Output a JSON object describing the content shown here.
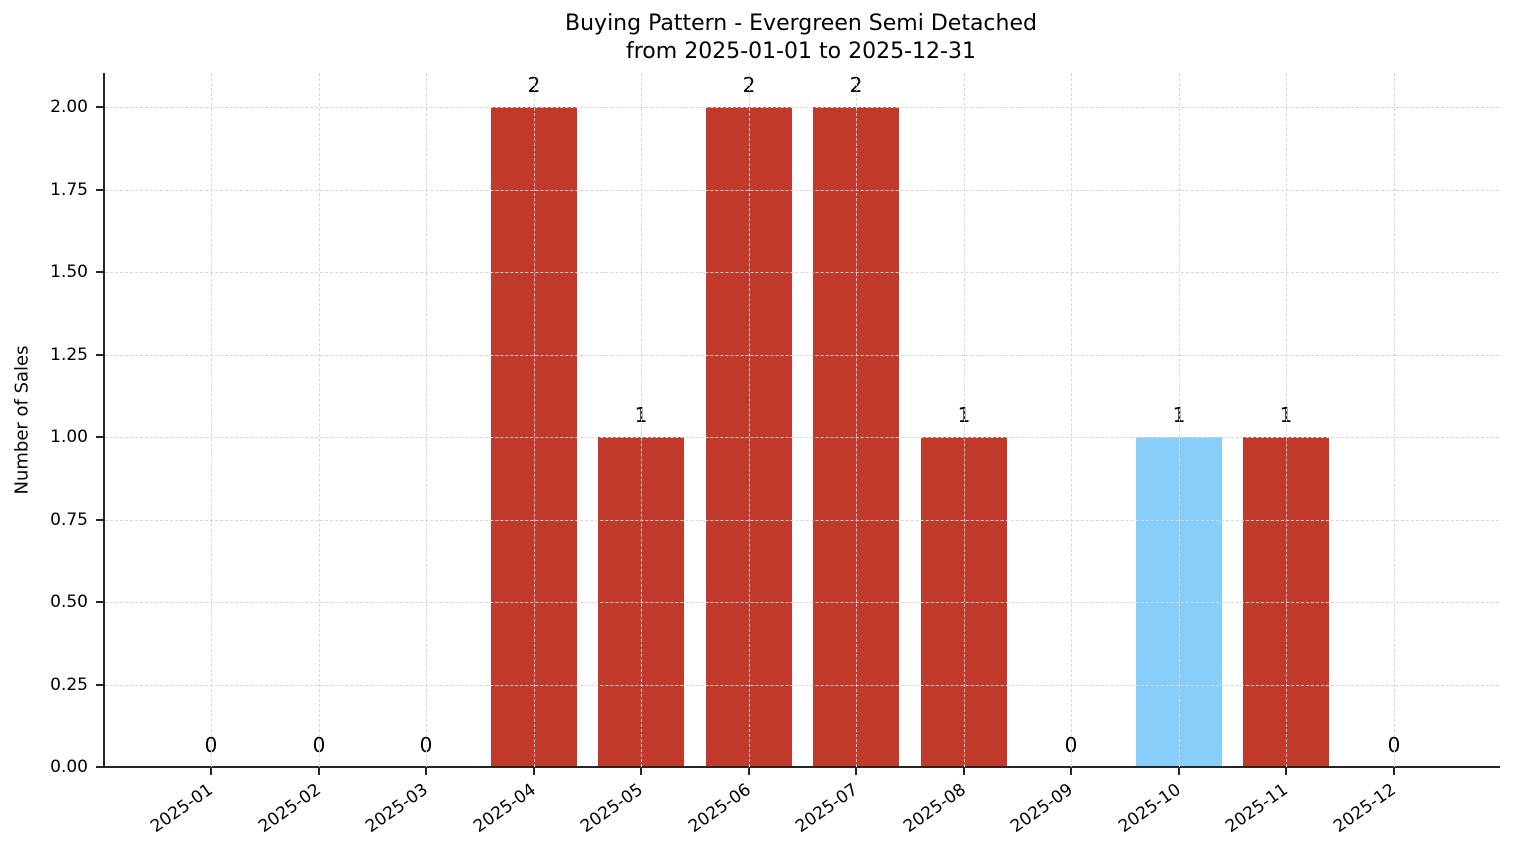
{
  "chart_data": {
    "type": "bar",
    "title": "Buying Pattern - Evergreen Semi Detached\nfrom 2025-01-01 to 2025-12-31",
    "title_lines": [
      "Buying Pattern - Evergreen Semi Detached",
      "from 2025-01-01 to 2025-12-31"
    ],
    "xlabel": "",
    "ylabel": "Number of Sales",
    "categories": [
      "2025-01",
      "2025-02",
      "2025-03",
      "2025-04",
      "2025-05",
      "2025-06",
      "2025-07",
      "2025-08",
      "2025-09",
      "2025-10",
      "2025-11",
      "2025-12"
    ],
    "values": [
      0,
      0,
      0,
      2,
      1,
      2,
      2,
      1,
      0,
      1,
      1,
      0
    ],
    "data_labels": [
      "0",
      "0",
      "0",
      "2",
      "1",
      "2",
      "2",
      "1",
      "0",
      "1",
      "1",
      "0"
    ],
    "bar_colors": [
      "#c0392b",
      "#c0392b",
      "#c0392b",
      "#c0392b",
      "#c0392b",
      "#c0392b",
      "#c0392b",
      "#c0392b",
      "#c0392b",
      "#87cefa",
      "#c0392b",
      "#c0392b"
    ],
    "highlight_category": "2025-10",
    "colors": {
      "default_bar": "#c0392b",
      "highlight_bar": "#87cefa",
      "grid": "#d6d6d6",
      "axis": "#262626"
    },
    "ylim": [
      0,
      2.1
    ],
    "yticks": [
      0,
      0.25,
      0.5,
      0.75,
      1.0,
      1.25,
      1.5,
      1.75,
      2.0
    ],
    "ytick_labels": [
      "0.00",
      "0.25",
      "0.50",
      "0.75",
      "1.00",
      "1.25",
      "1.50",
      "1.75",
      "2.00"
    ],
    "xtick_rotation": 35,
    "grid": true,
    "grid_style": "dashed",
    "legend": null
  }
}
